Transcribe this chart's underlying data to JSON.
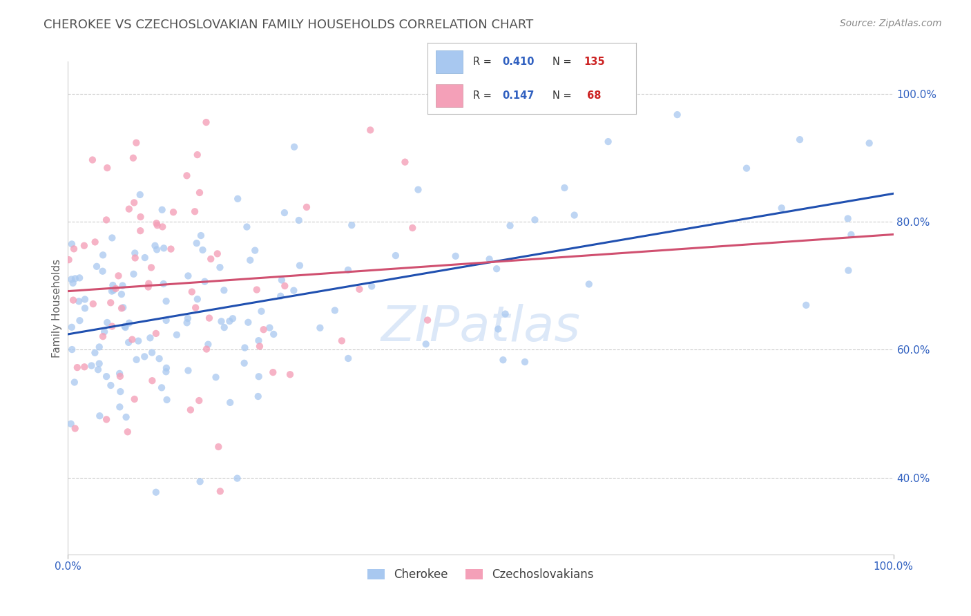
{
  "title": "CHEROKEE VS CZECHOSLOVAKIAN FAMILY HOUSEHOLDS CORRELATION CHART",
  "source": "Source: ZipAtlas.com",
  "ylabel_label": "Family Households",
  "legend_r1_val": "0.410",
  "legend_n1_val": "135",
  "legend_r2_val": "0.147",
  "legend_n2_val": "68",
  "cherokee_color": "#a8c8f0",
  "czechoslovakian_color": "#f4a0b8",
  "cherokee_line_color": "#2050b0",
  "czechoslovakian_line_color": "#d05070",
  "cherokee_label": "Cherokee",
  "czechoslovakian_label": "Czechoslovakians",
  "watermark": "ZIPatlas",
  "xlim": [
    0.0,
    1.0
  ],
  "ylim": [
    0.28,
    1.05
  ],
  "background_color": "#ffffff",
  "grid_color": "#cccccc",
  "title_color": "#505050",
  "source_color": "#888888",
  "title_fontsize": 13,
  "source_fontsize": 10,
  "axis_label_color": "#606060",
  "tick_color": "#3060c0",
  "watermark_color": "#dce8f8",
  "watermark_fontsize": 52,
  "legend_value_color": "#3060c0",
  "legend_n_color": "#cc2222",
  "legend_text_color": "#333333"
}
